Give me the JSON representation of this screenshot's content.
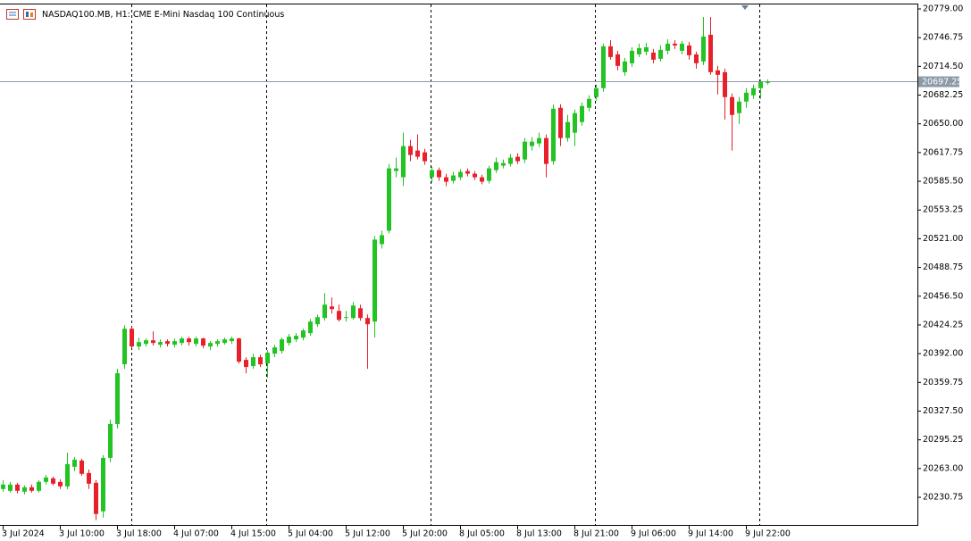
{
  "chart_data": {
    "type": "candlestick",
    "title": "NASDAQ100.MB, H1:  CME E-Mini Nasdaq 100 Continuous",
    "up_color": "#22c322",
    "down_color": "#e8202a",
    "current_price": 20697.25,
    "ylim": [
      20199.7,
      20784.0
    ],
    "yticks": [
      {
        "value": 20779.0,
        "label": "20779.00"
      },
      {
        "value": 20746.75,
        "label": "20746.75"
      },
      {
        "value": 20714.5,
        "label": "20714.50"
      },
      {
        "value": 20682.25,
        "label": "20682.25"
      },
      {
        "value": 20650.0,
        "label": "20650.00"
      },
      {
        "value": 20617.75,
        "label": "20617.75"
      },
      {
        "value": 20585.5,
        "label": "20585.50"
      },
      {
        "value": 20553.25,
        "label": "20553.25"
      },
      {
        "value": 20521.0,
        "label": "20521.00"
      },
      {
        "value": 20488.75,
        "label": "20488.75"
      },
      {
        "value": 20456.5,
        "label": "20456.50"
      },
      {
        "value": 20424.25,
        "label": "20424.25"
      },
      {
        "value": 20392.0,
        "label": "20392.00"
      },
      {
        "value": 20359.75,
        "label": "20359.75"
      },
      {
        "value": 20327.5,
        "label": "20327.50"
      },
      {
        "value": 20295.25,
        "label": "20295.25"
      },
      {
        "value": 20263.0,
        "label": "20263.00"
      },
      {
        "value": 20230.75,
        "label": "20230.75"
      }
    ],
    "categories": [
      "3 Jul 2024",
      null,
      null,
      null,
      null,
      null,
      null,
      null,
      "3 Jul 10:00",
      null,
      null,
      null,
      null,
      null,
      null,
      null,
      "3 Jul 18:00",
      null,
      null,
      null,
      null,
      null,
      null,
      null,
      "4 Jul 07:00",
      null,
      null,
      null,
      null,
      null,
      null,
      null,
      "4 Jul 15:00",
      null,
      null,
      null,
      null,
      null,
      null,
      null,
      "5 Jul 04:00",
      null,
      null,
      null,
      null,
      null,
      null,
      null,
      "5 Jul 12:00",
      null,
      null,
      null,
      null,
      null,
      null,
      null,
      "5 Jul 20:00",
      null,
      null,
      null,
      null,
      null,
      null,
      null,
      "8 Jul 05:00",
      null,
      null,
      null,
      null,
      null,
      null,
      null,
      "8 Jul 13:00",
      null,
      null,
      null,
      null,
      null,
      null,
      null,
      "8 Jul 21:00",
      null,
      null,
      null,
      null,
      null,
      null,
      null,
      "9 Jul 06:00",
      null,
      null,
      null,
      null,
      null,
      null,
      null,
      "9 Jul 14:00",
      null,
      null,
      null,
      null,
      null,
      null,
      null,
      "9 Jul 22:00",
      null,
      null,
      null
    ],
    "open": [
      20240,
      20238,
      20245,
      20237,
      20242,
      20238,
      20248,
      20252,
      20248,
      20243,
      20265,
      20272,
      20258,
      20247,
      20215,
      20275,
      20313,
      20380,
      20420,
      20400,
      20403,
      20407,
      20402,
      20406,
      20402,
      20404,
      20409,
      20403,
      20409,
      20400,
      20403,
      20404,
      20406,
      20409,
      20385,
      20378,
      20388,
      20381,
      20392,
      20395,
      20404,
      20408,
      20410,
      20415,
      20425,
      20432,
      20445,
      20440,
      20432,
      20432,
      20443,
      20432,
      20428,
      20515,
      20530,
      20597,
      20590,
      20625,
      20620,
      20618,
      20590,
      20598,
      20590,
      20586,
      20590,
      20597,
      20594,
      20590,
      20586,
      20598,
      20603,
      20605,
      20613,
      20610,
      20625,
      20628,
      20634,
      20608,
      20668,
      20634,
      20640,
      20652,
      20668,
      20680,
      20690,
      20737,
      20728,
      20708,
      20718,
      20728,
      20731,
      20730,
      20723,
      20732,
      20740,
      20732,
      20738,
      20728,
      20720,
      20750,
      20710,
      20708,
      20680,
      20662,
      20675,
      20682,
      20690,
      20696
    ],
    "high": [
      20250,
      20248,
      20247,
      20244,
      20245,
      20250,
      20256,
      20254,
      20251,
      20281,
      20276,
      20274,
      20262,
      20250,
      20278,
      20318,
      20375,
      20424,
      20422,
      20410,
      20409,
      20417,
      20408,
      20408,
      20409,
      20411,
      20411,
      20411,
      20410,
      20406,
      20408,
      20410,
      20411,
      20410,
      20388,
      20392,
      20391,
      20396,
      20402,
      20410,
      20414,
      20415,
      20420,
      20431,
      20436,
      20460,
      20455,
      20447,
      20440,
      20450,
      20447,
      20436,
      20524,
      20530,
      20605,
      20612,
      20640,
      20632,
      20638,
      20622,
      20602,
      20601,
      20594,
      20596,
      20599,
      20600,
      20597,
      20593,
      20603,
      20612,
      20610,
      20616,
      20617,
      20634,
      20635,
      20640,
      20638,
      20672,
      20672,
      20660,
      20666,
      20674,
      20682,
      20694,
      20740,
      20744,
      20732,
      20724,
      20736,
      20740,
      20741,
      20734,
      20738,
      20745,
      20744,
      20743,
      20742,
      20731,
      20770,
      20770,
      20715,
      20712,
      20684,
      20680,
      20690,
      20694,
      20700,
      20700
    ],
    "low": [
      20237,
      20236,
      20235,
      20234,
      20236,
      20236,
      20245,
      20244,
      20240,
      20240,
      20260,
      20255,
      20240,
      20205,
      20208,
      20270,
      20308,
      20375,
      20398,
      20396,
      20400,
      20401,
      20399,
      20400,
      20399,
      20401,
      20401,
      20400,
      20398,
      20396,
      20400,
      20402,
      20403,
      20381,
      20370,
      20375,
      20377,
      20365,
      20388,
      20392,
      20401,
      20405,
      20407,
      20412,
      20422,
      20429,
      20437,
      20428,
      20428,
      20430,
      20429,
      20375,
      20410,
      20510,
      20527,
      20590,
      20580,
      20608,
      20610,
      20604,
      20584,
      20586,
      20580,
      20583,
      20587,
      20591,
      20587,
      20582,
      20583,
      20595,
      20600,
      20602,
      20605,
      20606,
      20620,
      20624,
      20590,
      20604,
      20625,
      20630,
      20625,
      20648,
      20664,
      20676,
      20686,
      20722,
      20710,
      20704,
      20714,
      20725,
      20727,
      20718,
      20720,
      20728,
      20734,
      20728,
      20722,
      20712,
      20716,
      20705,
      20683,
      20655,
      20620,
      20650,
      20668,
      20678,
      20678,
      20694
    ],
    "close": [
      20245,
      20245,
      20238,
      20242,
      20238,
      20248,
      20253,
      20246,
      20243,
      20268,
      20273,
      20257,
      20246,
      20212,
      20275,
      20313,
      20370,
      20420,
      20400,
      20405,
      20407,
      20404,
      20405,
      20403,
      20406,
      20409,
      20405,
      20409,
      20401,
      20404,
      20406,
      20408,
      20409,
      20383,
      20377,
      20388,
      20380,
      20393,
      20399,
      20408,
      20411,
      20412,
      20418,
      20428,
      20433,
      20447,
      20442,
      20430,
      20433,
      20446,
      20432,
      20425,
      20520,
      20525,
      20600,
      20600,
      20625,
      20615,
      20613,
      20608,
      20598,
      20590,
      20585,
      20592,
      20596,
      20594,
      20590,
      20585,
      20600,
      20607,
      20606,
      20612,
      20608,
      20630,
      20630,
      20634,
      20605,
      20667,
      20634,
      20652,
      20662,
      20670,
      20678,
      20690,
      20737,
      20725,
      20715,
      20720,
      20732,
      20735,
      20736,
      20722,
      20733,
      20740,
      20738,
      20740,
      20727,
      20718,
      20748,
      20708,
      20705,
      20680,
      20660,
      20675,
      20685,
      20690,
      20697,
      20697.25
    ]
  }
}
